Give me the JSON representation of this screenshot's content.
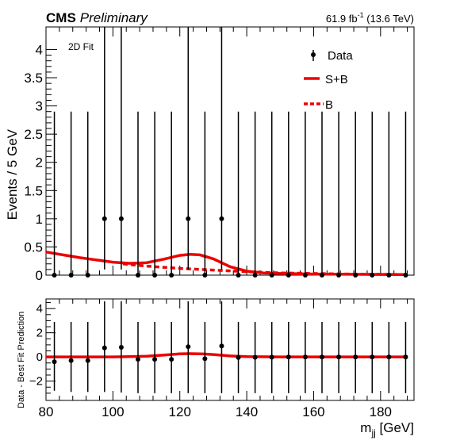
{
  "header": {
    "experiment": "CMS",
    "status": "Preliminary",
    "lumi_value": "61.9 fb",
    "lumi_exp": "-1",
    "energy": " (13.6 TeV)"
  },
  "annotation": "2D Fit",
  "chart_data": [
    {
      "type": "scatter",
      "panel": "main",
      "ylabel": "Events / 5 GeV",
      "xlim": [
        80,
        190
      ],
      "ylim": [
        0,
        4.4
      ],
      "y_ticks": [
        0,
        0.5,
        1,
        1.5,
        2,
        2.5,
        3,
        3.5,
        4
      ],
      "y_tick_labels": [
        "0",
        "0.5",
        "1",
        "1.5",
        "2",
        "2.5",
        "3",
        "3.5",
        "4"
      ],
      "legend_position": "top-right",
      "legend": [
        "Data",
        "S+B",
        "B"
      ],
      "colors": {
        "data": "#000000",
        "sb": "#ee0000",
        "b": "#ee0000"
      },
      "data_x": [
        82.5,
        87.5,
        92.5,
        97.5,
        102.5,
        107.5,
        112.5,
        117.5,
        122.5,
        127.5,
        132.5,
        137.5,
        142.5,
        147.5,
        152.5,
        157.5,
        162.5,
        167.5,
        172.5,
        177.5,
        182.5,
        187.5
      ],
      "data_y": [
        0,
        0,
        0,
        1,
        1,
        0,
        0,
        0,
        1,
        0,
        1,
        0,
        0,
        0,
        0,
        0,
        0,
        0,
        0,
        0,
        0,
        0
      ],
      "data_err_up": [
        2.9,
        2.9,
        2.9,
        4.15,
        4.15,
        2.9,
        2.9,
        2.9,
        4.15,
        2.9,
        4.15,
        2.9,
        2.9,
        2.9,
        2.9,
        2.9,
        2.9,
        2.9,
        2.9,
        2.9,
        2.9,
        2.9
      ],
      "sb_x": [
        80,
        85,
        90,
        95,
        100,
        105,
        110,
        115,
        120,
        123,
        126,
        130,
        135,
        140,
        145,
        150,
        155,
        160,
        170,
        180,
        188
      ],
      "sb_y": [
        0.41,
        0.36,
        0.31,
        0.27,
        0.23,
        0.21,
        0.22,
        0.28,
        0.35,
        0.37,
        0.36,
        0.29,
        0.15,
        0.07,
        0.04,
        0.03,
        0.025,
        0.02,
        0.015,
        0.012,
        0.01
      ],
      "b_x": [
        103,
        110,
        120,
        130,
        140,
        150,
        160,
        170,
        180,
        188
      ],
      "b_y": [
        0.2,
        0.16,
        0.12,
        0.09,
        0.06,
        0.04,
        0.03,
        0.02,
        0.015,
        0.01
      ]
    },
    {
      "type": "scatter",
      "panel": "ratio",
      "xlabel": "m",
      "xlabel_sub": "jj",
      "xlabel_unit": " [GeV]",
      "ylabel": "Data - Best Fit Prediction",
      "xlim": [
        80,
        190
      ],
      "ylim": [
        -3.6,
        4.8
      ],
      "x_ticks": [
        80,
        100,
        120,
        140,
        160,
        180
      ],
      "x_tick_labels": [
        "80",
        "100",
        "120",
        "140",
        "160",
        "180"
      ],
      "y_ticks": [
        -2,
        0,
        2,
        4
      ],
      "y_tick_labels": [
        "−2",
        "0",
        "2",
        "4"
      ],
      "data_x": [
        82.5,
        87.5,
        92.5,
        97.5,
        102.5,
        107.5,
        112.5,
        117.5,
        122.5,
        127.5,
        132.5,
        137.5,
        142.5,
        147.5,
        152.5,
        157.5,
        162.5,
        167.5,
        172.5,
        177.5,
        182.5,
        187.5
      ],
      "data_y": [
        -0.4,
        -0.3,
        -0.3,
        0.75,
        0.8,
        -0.2,
        -0.2,
        -0.2,
        0.85,
        -0.15,
        0.9,
        -0.05,
        -0.03,
        -0.02,
        -0.01,
        -0.01,
        -0.01,
        -0.01,
        -0.01,
        -0.01,
        -0.01,
        -0.01
      ],
      "err_low": [
        -2.8,
        -2.9,
        -2.9,
        -2.9,
        -2.95,
        -3.0,
        -3.0,
        -3.0,
        -3.0,
        -3.0,
        -3.0,
        -3.0,
        -3.0,
        -3.0,
        -3.0,
        -3.0,
        -3.0,
        -3.0,
        -3.0,
        -3.0,
        -3.0,
        -3.0
      ],
      "err_high": [
        2.9,
        2.9,
        2.9,
        4.6,
        4.6,
        2.9,
        2.9,
        2.9,
        4.6,
        2.9,
        4.6,
        2.9,
        2.9,
        2.9,
        2.9,
        2.9,
        2.9,
        2.9,
        2.9,
        2.9,
        2.9,
        2.9
      ],
      "curve_x": [
        80,
        90,
        100,
        105,
        110,
        115,
        120,
        123,
        126,
        130,
        135,
        140,
        150,
        160,
        170,
        180,
        188
      ],
      "curve_y": [
        0,
        0,
        0,
        0.02,
        0.06,
        0.15,
        0.25,
        0.27,
        0.26,
        0.2,
        0.08,
        0.02,
        0,
        0,
        0,
        0,
        0
      ]
    }
  ]
}
